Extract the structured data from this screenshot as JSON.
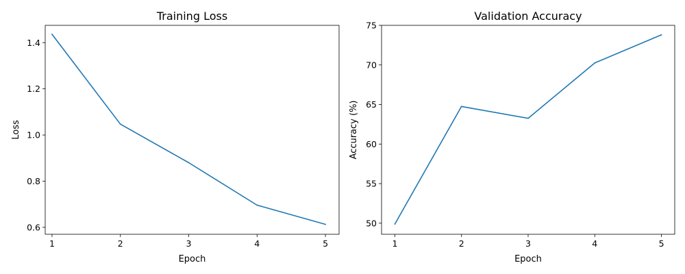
{
  "chart_data": [
    {
      "type": "line",
      "title": "Training Loss",
      "xlabel": "Epoch",
      "ylabel": "Loss",
      "x": [
        1,
        2,
        3,
        4,
        5
      ],
      "x_ticks": [
        "1",
        "2",
        "3",
        "4",
        "5"
      ],
      "xlim": [
        0.9,
        5.2
      ],
      "ylim": [
        0.57,
        1.475
      ],
      "y_ticks": [
        "0.6",
        "0.8",
        "1.0",
        "1.2",
        "1.4"
      ],
      "y_tick_values": [
        0.6,
        0.8,
        1.0,
        1.2,
        1.4
      ],
      "series": [
        {
          "values": [
            1.436,
            1.047,
            0.88,
            0.696,
            0.613
          ],
          "color": "#1f77b4"
        }
      ],
      "grid": false,
      "legend": "none"
    },
    {
      "type": "line",
      "title": "Validation Accuracy",
      "xlabel": "Epoch",
      "ylabel": "Accuracy (%)",
      "x": [
        1,
        2,
        3,
        4,
        5
      ],
      "x_ticks": [
        "1",
        "2",
        "3",
        "4",
        "5"
      ],
      "xlim": [
        0.8,
        5.2
      ],
      "ylim": [
        48.6,
        75.0
      ],
      "y_ticks": [
        "50",
        "55",
        "60",
        "65",
        "70",
        "75"
      ],
      "y_tick_values": [
        50,
        55,
        60,
        65,
        70,
        75
      ],
      "series": [
        {
          "values": [
            49.9,
            64.75,
            63.25,
            70.25,
            73.8
          ],
          "color": "#1f77b4"
        }
      ],
      "grid": false,
      "legend": "none"
    }
  ]
}
